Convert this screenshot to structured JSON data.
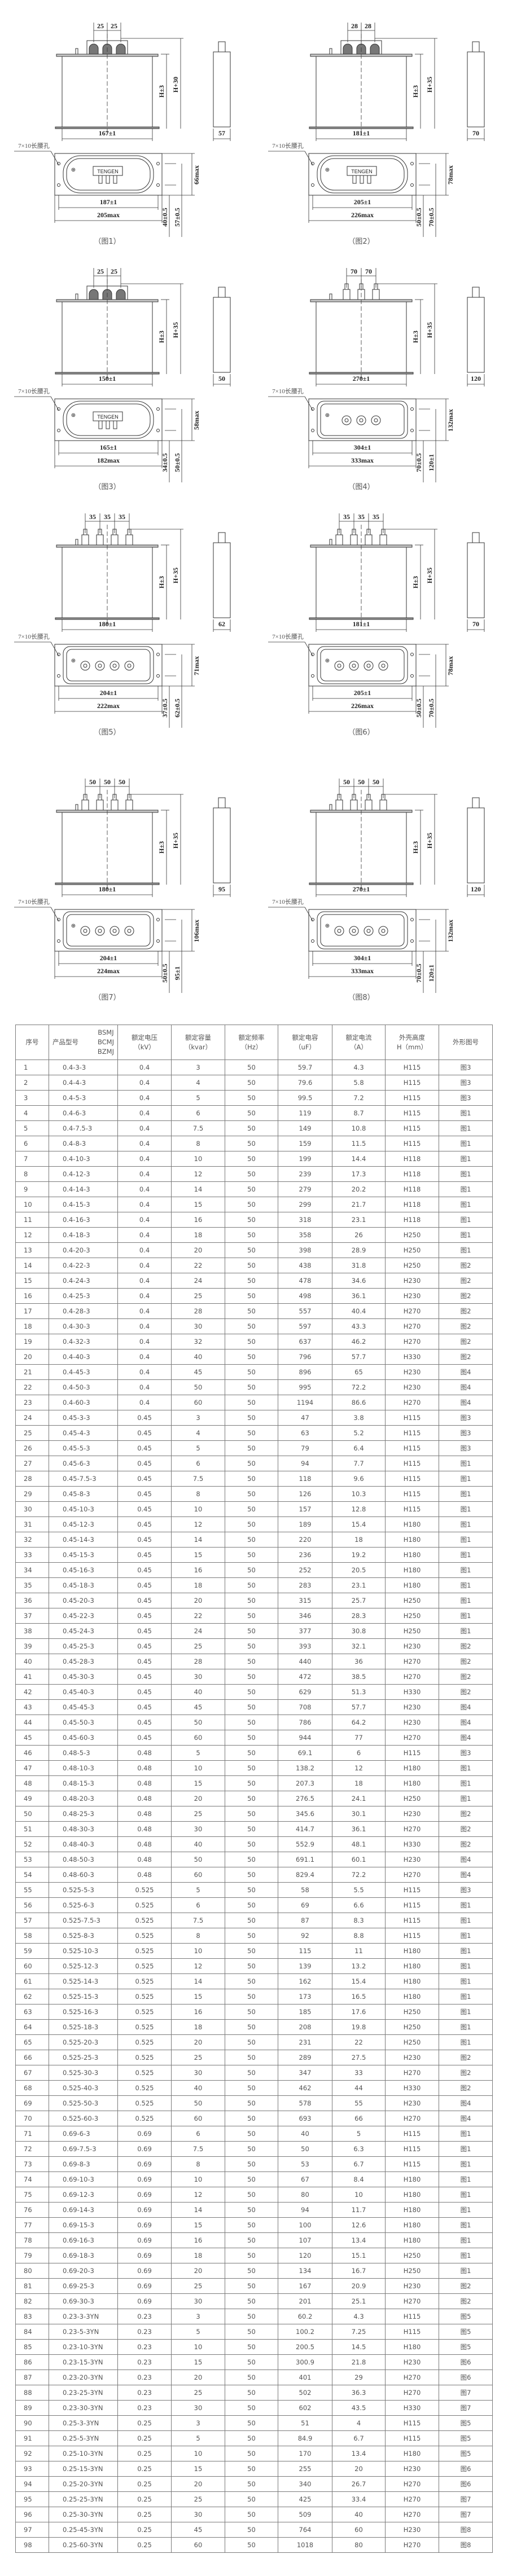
{
  "figures": [
    {
      "caption": "（图1）",
      "pitch": [
        "25",
        "25"
      ],
      "h1": "H±3",
      "h2": "H+30",
      "width": "167±1",
      "depth": "57",
      "hole": "7×10长腰孔",
      "base_inner": "187±1",
      "base_outer": "205max",
      "dim_a": "40±0.5",
      "dim_b": "57±0.5",
      "dim_max": "66max",
      "logo": "TENGEN",
      "style": "block"
    },
    {
      "caption": "（图2）",
      "pitch": [
        "28",
        "28"
      ],
      "h1": "H±3",
      "h2": "H+35",
      "width": "181±1",
      "depth": "70",
      "hole": "7×10长腰孔",
      "base_inner": "205±1",
      "base_outer": "226max",
      "dim_a": "50±0.5",
      "dim_b": "70±0.5",
      "dim_max": "78max",
      "logo": "TENGEN",
      "style": "block"
    },
    {
      "caption": "（图3）",
      "pitch": [
        "25",
        "25"
      ],
      "h1": "H±3",
      "h2": "H+35",
      "width": "150±1",
      "depth": "50",
      "hole": "7×10长腰孔",
      "base_inner": "165±1",
      "base_outer": "182max",
      "dim_a": "34±0.5",
      "dim_b": "50±0.5",
      "dim_max": "58max",
      "logo": "TENGEN",
      "style": "block"
    },
    {
      "caption": "（图4）",
      "pitch": [
        "70",
        "70"
      ],
      "h1": "H±3",
      "h2": "H+35",
      "width": "270±1",
      "depth": "120",
      "hole": "7×10长腰孔",
      "base_inner": "304±1",
      "base_outer": "333max",
      "dim_a": "70±0.5",
      "dim_b": "120±1",
      "dim_max": "132max",
      "style": "studs"
    },
    {
      "caption": "（图5）",
      "pitch": [
        "35",
        "35",
        "35"
      ],
      "h1": "H±3",
      "h2": "H+35",
      "width": "180±1",
      "depth": "62",
      "hole": "7×10长腰孔",
      "base_inner": "204±1",
      "base_outer": "222max",
      "dim_a": "37±0.5",
      "dim_b": "62±0.5",
      "dim_max": "71max",
      "style": "studs"
    },
    {
      "caption": "（图6）",
      "pitch": [
        "35",
        "35",
        "35"
      ],
      "h1": "H±3",
      "h2": "H+35",
      "width": "181±1",
      "depth": "70",
      "hole": "7×10长腰孔",
      "base_inner": "205±1",
      "base_outer": "226max",
      "dim_a": "50±0.5",
      "dim_b": "70±0.5",
      "dim_max": "78max",
      "style": "studs"
    },
    {
      "caption": "（图7）",
      "pitch": [
        "50",
        "50",
        "50"
      ],
      "h1": "H±3",
      "h2": "H+35",
      "width": "180±1",
      "depth": "95",
      "hole": "7×10长腰孔",
      "base_inner": "204±1",
      "base_outer": "224max",
      "dim_a": "50±0.5",
      "dim_b": "95±1",
      "dim_max": "106max",
      "style": "studs"
    },
    {
      "caption": "（图8）",
      "pitch": [
        "50",
        "50",
        "50"
      ],
      "h1": "H±3",
      "h2": "H+35",
      "width": "270±1",
      "depth": "120",
      "hole": "7×10长腰孔",
      "base_inner": "304±1",
      "base_outer": "333max",
      "dim_a": "70±0.5",
      "dim_b": "120±1",
      "dim_max": "132max",
      "style": "studs"
    }
  ],
  "table": {
    "headers": {
      "no": "序号",
      "model": "产品型号",
      "series": [
        "BSMJ",
        "BCMJ",
        "BZMJ"
      ],
      "voltage": [
        "额定电压",
        "（kV）"
      ],
      "capacity": [
        "额定容量",
        "（kvar）"
      ],
      "frequency": [
        "额定频率",
        "（Hz）"
      ],
      "capacitance": [
        "额定电容",
        "（uF）"
      ],
      "current": [
        "额定电流",
        "（A）"
      ],
      "height": [
        "外壳高度",
        "H（mm）"
      ],
      "figure": "外形图号"
    },
    "rows": [
      [
        "1",
        "0.4-3-3",
        "0.4",
        "3",
        "50",
        "59.7",
        "4.3",
        "H115",
        "图3"
      ],
      [
        "2",
        "0.4-4-3",
        "0.4",
        "4",
        "50",
        "79.6",
        "5.8",
        "H115",
        "图3"
      ],
      [
        "3",
        "0.4-5-3",
        "0.4",
        "5",
        "50",
        "99.5",
        "7.2",
        "H115",
        "图3"
      ],
      [
        "4",
        "0.4-6-3",
        "0.4",
        "6",
        "50",
        "119",
        "8.7",
        "H115",
        "图1"
      ],
      [
        "5",
        "0.4-7.5-3",
        "0.4",
        "7.5",
        "50",
        "149",
        "10.8",
        "H115",
        "图1"
      ],
      [
        "6",
        "0.4-8-3",
        "0.4",
        "8",
        "50",
        "159",
        "11.5",
        "H115",
        "图1"
      ],
      [
        "7",
        "0.4-10-3",
        "0.4",
        "10",
        "50",
        "199",
        "14.4",
        "H118",
        "图1"
      ],
      [
        "8",
        "0.4-12-3",
        "0.4",
        "12",
        "50",
        "239",
        "17.3",
        "H118",
        "图1"
      ],
      [
        "9",
        "0.4-14-3",
        "0.4",
        "14",
        "50",
        "279",
        "20.2",
        "H118",
        "图1"
      ],
      [
        "10",
        "0.4-15-3",
        "0.4",
        "15",
        "50",
        "299",
        "21.7",
        "H118",
        "图1"
      ],
      [
        "11",
        "0.4-16-3",
        "0.4",
        "16",
        "50",
        "318",
        "23.1",
        "H118",
        "图1"
      ],
      [
        "12",
        "0.4-18-3",
        "0.4",
        "18",
        "50",
        "358",
        "26",
        "H250",
        "图1"
      ],
      [
        "13",
        "0.4-20-3",
        "0.4",
        "20",
        "50",
        "398",
        "28.9",
        "H250",
        "图1"
      ],
      [
        "14",
        "0.4-22-3",
        "0.4",
        "22",
        "50",
        "438",
        "31.8",
        "H250",
        "图2"
      ],
      [
        "15",
        "0.4-24-3",
        "0.4",
        "24",
        "50",
        "478",
        "34.6",
        "H230",
        "图2"
      ],
      [
        "16",
        "0.4-25-3",
        "0.4",
        "25",
        "50",
        "498",
        "36.1",
        "H230",
        "图2"
      ],
      [
        "17",
        "0.4-28-3",
        "0.4",
        "28",
        "50",
        "557",
        "40.4",
        "H270",
        "图2"
      ],
      [
        "18",
        "0.4-30-3",
        "0.4",
        "30",
        "50",
        "597",
        "43.3",
        "H270",
        "图2"
      ],
      [
        "19",
        "0.4-32-3",
        "0.4",
        "32",
        "50",
        "637",
        "46.2",
        "H270",
        "图2"
      ],
      [
        "20",
        "0.4-40-3",
        "0.4",
        "40",
        "50",
        "796",
        "57.7",
        "H330",
        "图2"
      ],
      [
        "21",
        "0.4-45-3",
        "0.4",
        "45",
        "50",
        "896",
        "65",
        "H230",
        "图4"
      ],
      [
        "22",
        "0.4-50-3",
        "0.4",
        "50",
        "50",
        "995",
        "72.2",
        "H230",
        "图4"
      ],
      [
        "23",
        "0.4-60-3",
        "0.4",
        "60",
        "50",
        "1194",
        "86.6",
        "H270",
        "图4"
      ],
      [
        "24",
        "0.45-3-3",
        "0.45",
        "3",
        "50",
        "47",
        "3.8",
        "H115",
        "图3"
      ],
      [
        "25",
        "0.45-4-3",
        "0.45",
        "4",
        "50",
        "63",
        "5.2",
        "H115",
        "图3"
      ],
      [
        "26",
        "0.45-5-3",
        "0.45",
        "5",
        "50",
        "79",
        "6.4",
        "H115",
        "图3"
      ],
      [
        "27",
        "0.45-6-3",
        "0.45",
        "6",
        "50",
        "94",
        "7.7",
        "H115",
        "图1"
      ],
      [
        "28",
        "0.45-7.5-3",
        "0.45",
        "7.5",
        "50",
        "118",
        "9.6",
        "H115",
        "图1"
      ],
      [
        "29",
        "0.45-8-3",
        "0.45",
        "8",
        "50",
        "126",
        "10.3",
        "H115",
        "图1"
      ],
      [
        "30",
        "0.45-10-3",
        "0.45",
        "10",
        "50",
        "157",
        "12.8",
        "H115",
        "图1"
      ],
      [
        "31",
        "0.45-12-3",
        "0.45",
        "12",
        "50",
        "189",
        "15.4",
        "H180",
        "图1"
      ],
      [
        "32",
        "0.45-14-3",
        "0.45",
        "14",
        "50",
        "220",
        "18",
        "H180",
        "图1"
      ],
      [
        "33",
        "0.45-15-3",
        "0.45",
        "15",
        "50",
        "236",
        "19.2",
        "H180",
        "图1"
      ],
      [
        "34",
        "0.45-16-3",
        "0.45",
        "16",
        "50",
        "252",
        "20.5",
        "H180",
        "图1"
      ],
      [
        "35",
        "0.45-18-3",
        "0.45",
        "18",
        "50",
        "283",
        "23.1",
        "H180",
        "图1"
      ],
      [
        "36",
        "0.45-20-3",
        "0.45",
        "20",
        "50",
        "315",
        "25.7",
        "H250",
        "图1"
      ],
      [
        "37",
        "0.45-22-3",
        "0.45",
        "22",
        "50",
        "346",
        "28.3",
        "H250",
        "图1"
      ],
      [
        "38",
        "0.45-24-3",
        "0.45",
        "24",
        "50",
        "377",
        "30.8",
        "H250",
        "图1"
      ],
      [
        "39",
        "0.45-25-3",
        "0.45",
        "25",
        "50",
        "393",
        "32.1",
        "H230",
        "图2"
      ],
      [
        "40",
        "0.45-28-3",
        "0.45",
        "28",
        "50",
        "440",
        "36",
        "H270",
        "图2"
      ],
      [
        "41",
        "0.45-30-3",
        "0.45",
        "30",
        "50",
        "472",
        "38.5",
        "H270",
        "图2"
      ],
      [
        "42",
        "0.45-40-3",
        "0.45",
        "40",
        "50",
        "629",
        "51.3",
        "H330",
        "图2"
      ],
      [
        "43",
        "0.45-45-3",
        "0.45",
        "45",
        "50",
        "708",
        "57.7",
        "H230",
        "图4"
      ],
      [
        "44",
        "0.45-50-3",
        "0.45",
        "50",
        "50",
        "786",
        "64.2",
        "H230",
        "图4"
      ],
      [
        "45",
        "0.45-60-3",
        "0.45",
        "60",
        "50",
        "944",
        "77",
        "H270",
        "图4"
      ],
      [
        "46",
        "0.48-5-3",
        "0.48",
        "5",
        "50",
        "69.1",
        "6",
        "H115",
        "图3"
      ],
      [
        "47",
        "0.48-10-3",
        "0.48",
        "10",
        "50",
        "138.2",
        "12",
        "H180",
        "图1"
      ],
      [
        "48",
        "0.48-15-3",
        "0.48",
        "15",
        "50",
        "207.3",
        "18",
        "H180",
        "图1"
      ],
      [
        "49",
        "0.48-20-3",
        "0.48",
        "20",
        "50",
        "276.5",
        "24.1",
        "H250",
        "图1"
      ],
      [
        "50",
        "0.48-25-3",
        "0.48",
        "25",
        "50",
        "345.6",
        "30.1",
        "H230",
        "图2"
      ],
      [
        "51",
        "0.48-30-3",
        "0.48",
        "30",
        "50",
        "414.7",
        "36.1",
        "H270",
        "图2"
      ],
      [
        "52",
        "0.48-40-3",
        "0.48",
        "40",
        "50",
        "552.9",
        "48.1",
        "H330",
        "图2"
      ],
      [
        "53",
        "0.48-50-3",
        "0.48",
        "50",
        "50",
        "691.1",
        "60.1",
        "H230",
        "图4"
      ],
      [
        "54",
        "0.48-60-3",
        "0.48",
        "60",
        "50",
        "829.4",
        "72.2",
        "H270",
        "图4"
      ],
      [
        "55",
        "0.525-5-3",
        "0.525",
        "5",
        "50",
        "58",
        "5.5",
        "H115",
        "图3"
      ],
      [
        "56",
        "0.525-6-3",
        "0.525",
        "6",
        "50",
        "69",
        "6.6",
        "H115",
        "图1"
      ],
      [
        "57",
        "0.525-7.5-3",
        "0.525",
        "7.5",
        "50",
        "87",
        "8.3",
        "H115",
        "图1"
      ],
      [
        "58",
        "0.525-8-3",
        "0.525",
        "8",
        "50",
        "92",
        "8.8",
        "H115",
        "图1"
      ],
      [
        "59",
        "0.525-10-3",
        "0.525",
        "10",
        "50",
        "115",
        "11",
        "H180",
        "图1"
      ],
      [
        "60",
        "0.525-12-3",
        "0.525",
        "12",
        "50",
        "139",
        "13.2",
        "H180",
        "图1"
      ],
      [
        "61",
        "0.525-14-3",
        "0.525",
        "14",
        "50",
        "162",
        "15.4",
        "H180",
        "图1"
      ],
      [
        "62",
        "0.525-15-3",
        "0.525",
        "15",
        "50",
        "173",
        "16.5",
        "H180",
        "图1"
      ],
      [
        "63",
        "0.525-16-3",
        "0.525",
        "16",
        "50",
        "185",
        "17.6",
        "H250",
        "图1"
      ],
      [
        "64",
        "0.525-18-3",
        "0.525",
        "18",
        "50",
        "208",
        "19.8",
        "H250",
        "图1"
      ],
      [
        "65",
        "0.525-20-3",
        "0.525",
        "20",
        "50",
        "231",
        "22",
        "H250",
        "图1"
      ],
      [
        "66",
        "0.525-25-3",
        "0.525",
        "25",
        "50",
        "289",
        "27.5",
        "H230",
        "图2"
      ],
      [
        "67",
        "0.525-30-3",
        "0.525",
        "30",
        "50",
        "347",
        "33",
        "H270",
        "图2"
      ],
      [
        "68",
        "0.525-40-3",
        "0.525",
        "40",
        "50",
        "462",
        "44",
        "H330",
        "图2"
      ],
      [
        "69",
        "0.525-50-3",
        "0.525",
        "50",
        "50",
        "578",
        "55",
        "H230",
        "图4"
      ],
      [
        "70",
        "0.525-60-3",
        "0.525",
        "60",
        "50",
        "693",
        "66",
        "H270",
        "图4"
      ],
      [
        "71",
        "0.69-6-3",
        "0.69",
        "6",
        "50",
        "40",
        "5",
        "H115",
        "图1"
      ],
      [
        "72",
        "0.69-7.5-3",
        "0.69",
        "7.5",
        "50",
        "50",
        "6.3",
        "H115",
        "图1"
      ],
      [
        "73",
        "0.69-8-3",
        "0.69",
        "8",
        "50",
        "53",
        "6.7",
        "H115",
        "图1"
      ],
      [
        "74",
        "0.69-10-3",
        "0.69",
        "10",
        "50",
        "67",
        "8.4",
        "H180",
        "图1"
      ],
      [
        "75",
        "0.69-12-3",
        "0.69",
        "12",
        "50",
        "80",
        "10",
        "H180",
        "图1"
      ],
      [
        "76",
        "0.69-14-3",
        "0.69",
        "14",
        "50",
        "94",
        "11.7",
        "H180",
        "图1"
      ],
      [
        "77",
        "0.69-15-3",
        "0.69",
        "15",
        "50",
        "100",
        "12.6",
        "H180",
        "图1"
      ],
      [
        "78",
        "0.69-16-3",
        "0.69",
        "16",
        "50",
        "107",
        "13.4",
        "H180",
        "图1"
      ],
      [
        "79",
        "0.69-18-3",
        "0.69",
        "18",
        "50",
        "120",
        "15.1",
        "H250",
        "图1"
      ],
      [
        "80",
        "0.69-20-3",
        "0.69",
        "20",
        "50",
        "134",
        "16.7",
        "H250",
        "图1"
      ],
      [
        "81",
        "0.69-25-3",
        "0.69",
        "25",
        "50",
        "167",
        "20.9",
        "H230",
        "图2"
      ],
      [
        "82",
        "0.69-30-3",
        "0.69",
        "30",
        "50",
        "201",
        "25.1",
        "H270",
        "图2"
      ],
      [
        "83",
        "0.23-3-3YN",
        "0.23",
        "3",
        "50",
        "60.2",
        "4.3",
        "H115",
        "图5"
      ],
      [
        "84",
        "0.23-5-3YN",
        "0.23",
        "5",
        "50",
        "100.2",
        "7.25",
        "H115",
        "图5"
      ],
      [
        "85",
        "0.23-10-3YN",
        "0.23",
        "10",
        "50",
        "200.5",
        "14.5",
        "H180",
        "图5"
      ],
      [
        "86",
        "0.23-15-3YN",
        "0.23",
        "15",
        "50",
        "300.9",
        "21.8",
        "H230",
        "图6"
      ],
      [
        "87",
        "0.23-20-3YN",
        "0.23",
        "20",
        "50",
        "401",
        "29",
        "H270",
        "图6"
      ],
      [
        "88",
        "0.23-25-3YN",
        "0.23",
        "25",
        "50",
        "502",
        "36.3",
        "H270",
        "图7"
      ],
      [
        "89",
        "0.23-30-3YN",
        "0.23",
        "30",
        "50",
        "602",
        "43.5",
        "H330",
        "图7"
      ],
      [
        "90",
        "0.25-3-3YN",
        "0.25",
        "3",
        "50",
        "51",
        "4",
        "H115",
        "图5"
      ],
      [
        "91",
        "0.25-5-3YN",
        "0.25",
        "5",
        "50",
        "84.9",
        "6.7",
        "H115",
        "图5"
      ],
      [
        "92",
        "0.25-10-3YN",
        "0.25",
        "10",
        "50",
        "170",
        "13.4",
        "H180",
        "图5"
      ],
      [
        "93",
        "0.25-15-3YN",
        "0.25",
        "15",
        "50",
        "255",
        "20",
        "H230",
        "图6"
      ],
      [
        "94",
        "0.25-20-3YN",
        "0.25",
        "20",
        "50",
        "340",
        "26.7",
        "H270",
        "图6"
      ],
      [
        "95",
        "0.25-25-3YN",
        "0.25",
        "25",
        "50",
        "425",
        "33.4",
        "H270",
        "图7"
      ],
      [
        "96",
        "0.25-30-3YN",
        "0.25",
        "30",
        "50",
        "509",
        "40",
        "H270",
        "图7"
      ],
      [
        "97",
        "0.25-45-3YN",
        "0.25",
        "45",
        "50",
        "764",
        "60",
        "H230",
        "图8"
      ],
      [
        "98",
        "0.25-60-3YN",
        "0.25",
        "60",
        "50",
        "1018",
        "80",
        "H270",
        "图8"
      ]
    ]
  }
}
